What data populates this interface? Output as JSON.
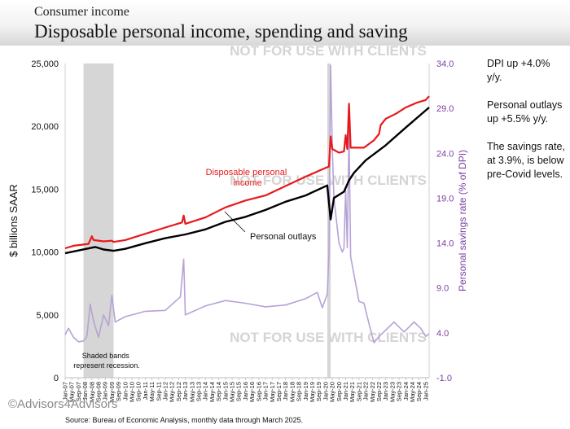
{
  "header": {
    "kicker": "Consumer income",
    "title": "Disposable personal income, spending and saving"
  },
  "watermarks": [
    "NOT FOR USE WITH CLIENTS",
    "NOT FOR USE WITH CLIENTS",
    "NOT FOR USE WITH CLIENTS"
  ],
  "notes": [
    "DPI up +4.0% y/y.",
    "Personal outlays up +5.5% y/y.",
    "The savings rate, at 3.9%, is below pre-Covid levels."
  ],
  "footer": {
    "copyright": "©Advisors4Advisors",
    "source": "Source: Bureau of Economic Analysis, monthly data through March 2025."
  },
  "colors": {
    "dpi": "#e8191a",
    "outlays": "#000000",
    "saving": "#b7a2d6",
    "right_axis": "#7a3fa0",
    "recession": "#d6d6d6"
  },
  "chart_data": {
    "type": "line",
    "x_start": "2007-01",
    "x_end": "2025-03",
    "x_tick_labels": [
      "Jan-07",
      "May-07",
      "Sep-07",
      "Jan-08",
      "May-08",
      "Sep-08",
      "Jan-09",
      "May-09",
      "Sep-09",
      "Jan-10",
      "May-10",
      "Sep-10",
      "Jan-11",
      "May-11",
      "Sep-11",
      "Jan-12",
      "May-12",
      "Sep-12",
      "Jan-13",
      "May-13",
      "Sep-13",
      "Jan-14",
      "May-14",
      "Sep-14",
      "Jan-15",
      "May-15",
      "Sep-15",
      "Jan-16",
      "May-16",
      "Sep-16",
      "Jan-17",
      "May-17",
      "Sep-17",
      "Jan-18",
      "May-18",
      "Sep-18",
      "Jan-19",
      "May-19",
      "Sep-19",
      "Jan-20",
      "May-20",
      "Sep-20",
      "Jan-21",
      "May-21",
      "Sep-21",
      "Jan-22",
      "May-22",
      "Sep-22",
      "Jan-23",
      "May-23",
      "Sep-23",
      "Jan-24",
      "May-24",
      "Sep-24",
      "Jan-25"
    ],
    "ylabel_left": "$ billions SAAR",
    "ylabel_right": "Personal savings rate (% of DPI)",
    "ylim_left": [
      0,
      25000
    ],
    "yticks_left": [
      "0",
      "5,000",
      "10,000",
      "15,000",
      "20,000",
      "25,000"
    ],
    "ylim_right": [
      -1.0,
      34.0
    ],
    "yticks_right": [
      "-1.0",
      "4.0",
      "9.0",
      "14.0",
      "19.0",
      "24.0",
      "29.0",
      "34.0"
    ],
    "recessions": [
      [
        "2007-12",
        "2009-06"
      ],
      [
        "2020-02",
        "2020-04"
      ]
    ],
    "recession_note": "Shaded bands represent recession.",
    "series": [
      {
        "name": "Disposable personal income",
        "axis": "left",
        "label": "Disposable personal income",
        "points": [
          [
            "2007-01",
            10300
          ],
          [
            "2007-06",
            10500
          ],
          [
            "2008-03",
            10650
          ],
          [
            "2008-05",
            11250
          ],
          [
            "2008-06",
            10950
          ],
          [
            "2008-12",
            10850
          ],
          [
            "2009-05",
            10900
          ],
          [
            "2009-06",
            10800
          ],
          [
            "2010-01",
            10950
          ],
          [
            "2011-01",
            11450
          ],
          [
            "2012-01",
            11950
          ],
          [
            "2012-11",
            12350
          ],
          [
            "2012-12",
            12900
          ],
          [
            "2013-01",
            12250
          ],
          [
            "2014-01",
            12750
          ],
          [
            "2015-01",
            13550
          ],
          [
            "2016-01",
            14100
          ],
          [
            "2017-01",
            14500
          ],
          [
            "2018-01",
            15250
          ],
          [
            "2019-01",
            16000
          ],
          [
            "2020-01",
            16700
          ],
          [
            "2020-03",
            16800
          ],
          [
            "2020-04",
            19200
          ],
          [
            "2020-05",
            18200
          ],
          [
            "2020-09",
            17900
          ],
          [
            "2020-12",
            18000
          ],
          [
            "2021-01",
            19300
          ],
          [
            "2021-02",
            18200
          ],
          [
            "2021-03",
            21800
          ],
          [
            "2021-04",
            18300
          ],
          [
            "2021-12",
            18300
          ],
          [
            "2022-06",
            18900
          ],
          [
            "2022-09",
            19400
          ],
          [
            "2022-10",
            20100
          ],
          [
            "2023-01",
            20600
          ],
          [
            "2023-07",
            21000
          ],
          [
            "2024-01",
            21500
          ],
          [
            "2024-08",
            21900
          ],
          [
            "2025-01",
            22100
          ],
          [
            "2025-03",
            22400
          ]
        ]
      },
      {
        "name": "Personal outlays",
        "axis": "left",
        "label": "Personal outlays",
        "points": [
          [
            "2007-01",
            9900
          ],
          [
            "2008-07",
            10400
          ],
          [
            "2008-12",
            10200
          ],
          [
            "2009-06",
            10100
          ],
          [
            "2010-01",
            10250
          ],
          [
            "2011-01",
            10700
          ],
          [
            "2012-01",
            11100
          ],
          [
            "2013-01",
            11400
          ],
          [
            "2014-01",
            11800
          ],
          [
            "2015-01",
            12400
          ],
          [
            "2016-01",
            12800
          ],
          [
            "2017-01",
            13350
          ],
          [
            "2018-01",
            14000
          ],
          [
            "2019-01",
            14500
          ],
          [
            "2020-02",
            15300
          ],
          [
            "2020-04",
            12600
          ],
          [
            "2020-06",
            14300
          ],
          [
            "2020-12",
            14800
          ],
          [
            "2021-03",
            15700
          ],
          [
            "2021-06",
            16300
          ],
          [
            "2022-01",
            17300
          ],
          [
            "2023-01",
            18500
          ],
          [
            "2024-01",
            19900
          ],
          [
            "2025-03",
            21500
          ]
        ]
      },
      {
        "name": "Personal savings rate",
        "axis": "right",
        "points": [
          [
            "2007-01",
            3.8
          ],
          [
            "2007-03",
            4.5
          ],
          [
            "2007-06",
            3.5
          ],
          [
            "2007-09",
            3.0
          ],
          [
            "2007-12",
            3.1
          ],
          [
            "2008-02",
            3.6
          ],
          [
            "2008-04",
            7.2
          ],
          [
            "2008-06",
            5.3
          ],
          [
            "2008-09",
            3.5
          ],
          [
            "2008-12",
            6.0
          ],
          [
            "2009-03",
            4.8
          ],
          [
            "2009-05",
            8.2
          ],
          [
            "2009-07",
            5.2
          ],
          [
            "2010-01",
            5.8
          ],
          [
            "2011-01",
            6.4
          ],
          [
            "2012-01",
            6.5
          ],
          [
            "2012-10",
            8.0
          ],
          [
            "2012-12",
            12.2
          ],
          [
            "2013-01",
            6.0
          ],
          [
            "2014-01",
            7.0
          ],
          [
            "2015-01",
            7.6
          ],
          [
            "2016-01",
            7.3
          ],
          [
            "2017-01",
            6.9
          ],
          [
            "2018-01",
            7.1
          ],
          [
            "2019-01",
            7.8
          ],
          [
            "2019-08",
            8.5
          ],
          [
            "2019-11",
            6.8
          ],
          [
            "2020-02",
            8.3
          ],
          [
            "2020-03",
            12.9
          ],
          [
            "2020-04",
            33.8
          ],
          [
            "2020-05",
            24.5
          ],
          [
            "2020-06",
            19.0
          ],
          [
            "2020-09",
            14.0
          ],
          [
            "2020-10",
            13.5
          ],
          [
            "2020-11",
            13.0
          ],
          [
            "2020-12",
            13.4
          ],
          [
            "2021-01",
            19.9
          ],
          [
            "2021-02",
            13.5
          ],
          [
            "2021-03",
            26.6
          ],
          [
            "2021-04",
            12.5
          ],
          [
            "2021-06",
            10.5
          ],
          [
            "2021-09",
            7.5
          ],
          [
            "2021-12",
            7.3
          ],
          [
            "2022-03",
            5.0
          ],
          [
            "2022-06",
            2.9
          ],
          [
            "2022-09",
            3.6
          ],
          [
            "2023-01",
            4.3
          ],
          [
            "2023-06",
            5.2
          ],
          [
            "2023-12",
            4.1
          ],
          [
            "2024-06",
            5.2
          ],
          [
            "2024-10",
            4.5
          ],
          [
            "2025-01",
            3.6
          ],
          [
            "2025-03",
            3.9
          ]
        ]
      }
    ]
  }
}
